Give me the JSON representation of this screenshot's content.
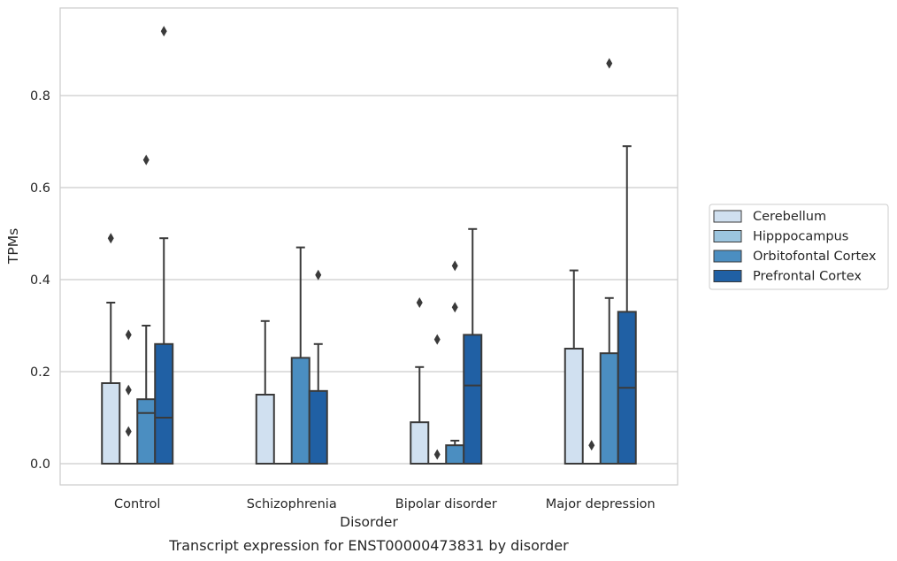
{
  "chart_data": {
    "type": "box",
    "caption": "Transcript expression for ENST00000473831 by disorder",
    "xlabel": "Disorder",
    "ylabel": "TPMs",
    "ylim": [
      -0.045,
      0.99
    ],
    "yticks": [
      0.0,
      0.2,
      0.4,
      0.6,
      0.8
    ],
    "ytick_labels": [
      "0.0",
      "0.2",
      "0.4",
      "0.6",
      "0.8"
    ],
    "grid": "horizontal",
    "legend_position": "outside-right",
    "categories": [
      "Control",
      "Schizophrenia",
      "Bipolar disorder",
      "Major depression"
    ],
    "series": [
      {
        "name": "Cerebellum",
        "color": "#d0e0f0",
        "boxes": [
          {
            "q1": 0.0,
            "median": 0.0,
            "q3": 0.175,
            "whisker_low": 0.0,
            "whisker_high": 0.35,
            "outliers": [
              0.49
            ]
          },
          {
            "q1": 0.0,
            "median": 0.0,
            "q3": 0.15,
            "whisker_low": 0.0,
            "whisker_high": 0.31,
            "outliers": []
          },
          {
            "q1": 0.0,
            "median": 0.0,
            "q3": 0.09,
            "whisker_low": 0.0,
            "whisker_high": 0.21,
            "outliers": [
              0.35
            ]
          },
          {
            "q1": 0.0,
            "median": 0.0,
            "q3": 0.25,
            "whisker_low": 0.0,
            "whisker_high": 0.42,
            "outliers": []
          }
        ]
      },
      {
        "name": "Hipppocampus",
        "color": "#9cc5df",
        "boxes": [
          {
            "q1": 0.0,
            "median": 0.0,
            "q3": 0.0,
            "whisker_low": 0.0,
            "whisker_high": 0.0,
            "outliers": [
              0.28,
              0.16,
              0.07
            ]
          },
          {
            "q1": 0.0,
            "median": 0.0,
            "q3": 0.0,
            "whisker_low": 0.0,
            "whisker_high": 0.0,
            "outliers": []
          },
          {
            "q1": 0.0,
            "median": 0.0,
            "q3": 0.0,
            "whisker_low": 0.0,
            "whisker_high": 0.0,
            "outliers": [
              0.27,
              0.02
            ]
          },
          {
            "q1": 0.0,
            "median": 0.0,
            "q3": 0.0,
            "whisker_low": 0.0,
            "whisker_high": 0.0,
            "outliers": [
              0.04
            ]
          }
        ]
      },
      {
        "name": "Orbitofontal Cortex",
        "color": "#4b8ec1",
        "boxes": [
          {
            "q1": 0.0,
            "median": 0.11,
            "q3": 0.14,
            "whisker_low": 0.0,
            "whisker_high": 0.3,
            "outliers": [
              0.66
            ]
          },
          {
            "q1": 0.0,
            "median": 0.0,
            "q3": 0.23,
            "whisker_low": 0.0,
            "whisker_high": 0.47,
            "outliers": []
          },
          {
            "q1": 0.0,
            "median": 0.0,
            "q3": 0.04,
            "whisker_low": 0.0,
            "whisker_high": 0.05,
            "outliers": [
              0.43,
              0.34
            ]
          },
          {
            "q1": 0.0,
            "median": 0.0,
            "q3": 0.24,
            "whisker_low": 0.0,
            "whisker_high": 0.36,
            "outliers": [
              0.87
            ]
          }
        ]
      },
      {
        "name": "Prefrontal Cortex",
        "color": "#2060a4",
        "boxes": [
          {
            "q1": 0.0,
            "median": 0.1,
            "q3": 0.26,
            "whisker_low": 0.0,
            "whisker_high": 0.49,
            "outliers": [
              0.94
            ]
          },
          {
            "q1": 0.0,
            "median": 0.0,
            "q3": 0.158,
            "whisker_low": 0.0,
            "whisker_high": 0.26,
            "outliers": [
              0.41
            ]
          },
          {
            "q1": 0.0,
            "median": 0.17,
            "q3": 0.28,
            "whisker_low": 0.0,
            "whisker_high": 0.51,
            "outliers": []
          },
          {
            "q1": 0.0,
            "median": 0.165,
            "q3": 0.33,
            "whisker_low": 0.0,
            "whisker_high": 0.69,
            "outliers": []
          }
        ]
      }
    ]
  }
}
